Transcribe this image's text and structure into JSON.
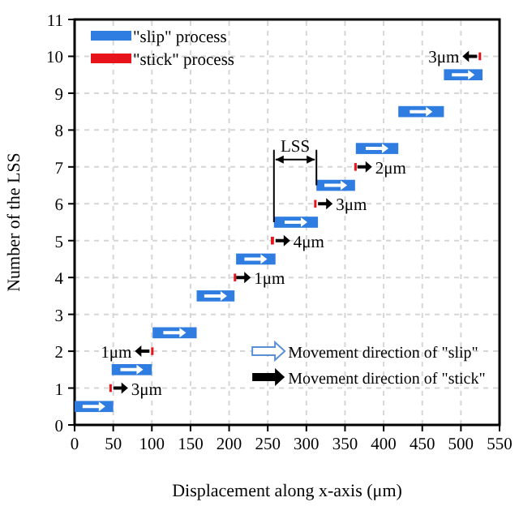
{
  "chart_data": {
    "type": "bar",
    "orientation": "horizontal",
    "xlabel": "Displacement along x-axis (μm)",
    "ylabel": "Number of the LSS",
    "xlim": [
      0,
      550
    ],
    "xticks": [
      0,
      50,
      100,
      150,
      200,
      250,
      300,
      350,
      400,
      450,
      500,
      550
    ],
    "ylim": [
      0,
      11
    ],
    "yticks": [
      0,
      1,
      2,
      3,
      4,
      5,
      6,
      7,
      8,
      9,
      10,
      11
    ],
    "grid": true,
    "legend": "top left",
    "series": [
      {
        "name": "\"slip\" process",
        "color": "#2f7de1",
        "x": [
          0.5,
          1.5,
          2.5,
          3.5,
          4.5,
          5.5,
          6.5,
          7.5,
          8.5,
          9.5
        ],
        "base": [
          0,
          48,
          101,
          158,
          209,
          258,
          313,
          364,
          419,
          478
        ],
        "values": [
          50,
          52,
          57,
          49,
          51,
          57,
          50,
          55,
          59,
          50
        ]
      },
      {
        "name": "\"stick\" process",
        "color": "#e8141c",
        "x": [
          1,
          2,
          4,
          5,
          6,
          7,
          10
        ],
        "base": [
          45,
          99,
          206,
          254,
          310,
          362,
          523
        ],
        "values": [
          3,
          1,
          1,
          4,
          3,
          2,
          3
        ],
        "value_labels": [
          "3μm",
          "1μm",
          "1μm",
          "4μm",
          "3μm",
          "2μm",
          "3μm"
        ]
      }
    ],
    "annotations": [
      {
        "text": "LSS",
        "x": 258,
        "y": 5.5
      },
      "Movement direction of \"slip\"",
      "Movement direction of \"stick\""
    ]
  }
}
